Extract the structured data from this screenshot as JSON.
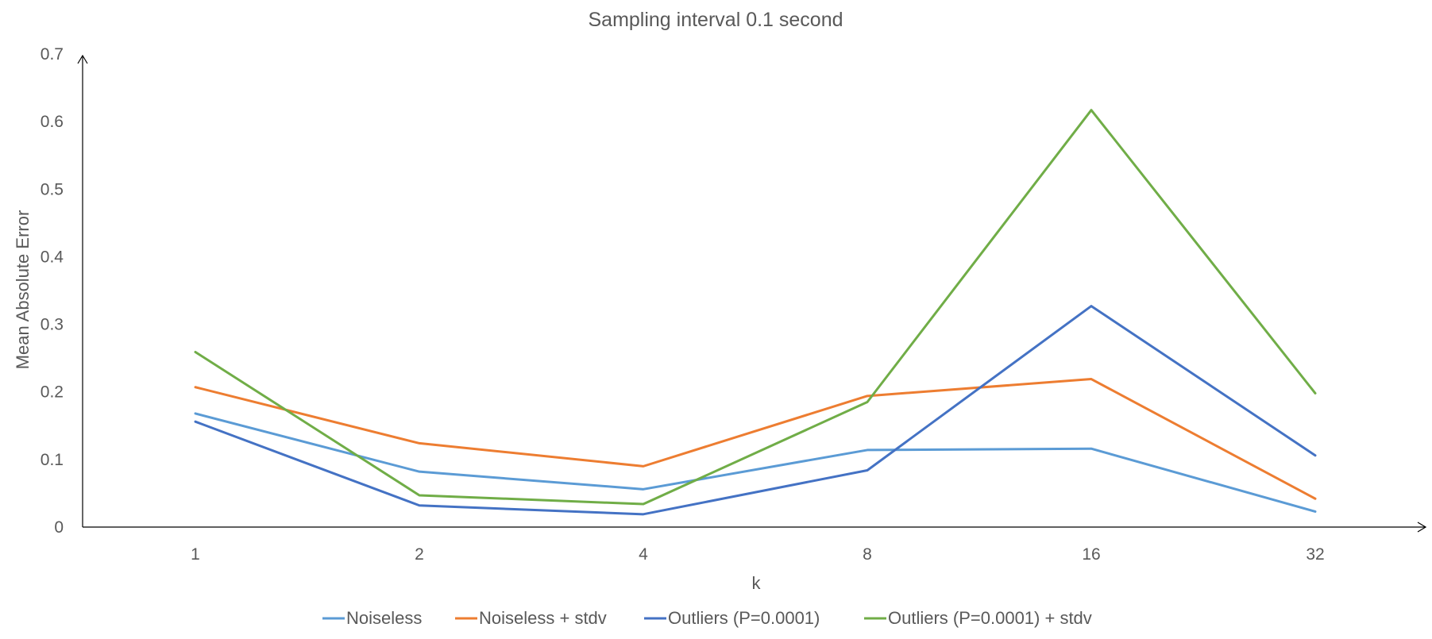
{
  "chart_data": {
    "type": "line",
    "title": "Sampling interval 0.1 second",
    "xlabel": "k",
    "ylabel": "Mean Absolute Error",
    "categories": [
      "1",
      "2",
      "4",
      "8",
      "16",
      "32"
    ],
    "ylim": [
      0,
      0.7
    ],
    "yticks": [
      "0",
      "0.1",
      "0.2",
      "0.3",
      "0.4",
      "0.5",
      "0.6",
      "0.7"
    ],
    "grid": false,
    "legend_position": "bottom",
    "series": [
      {
        "name": "Noiseless",
        "color": "#5B9BD5",
        "values": [
          0.168,
          0.082,
          0.056,
          0.114,
          0.116,
          0.023
        ]
      },
      {
        "name": "Noiseless + stdv",
        "color": "#ED7D31",
        "values": [
          0.207,
          0.124,
          0.09,
          0.194,
          0.219,
          0.042
        ]
      },
      {
        "name": "Outliers (P=0.0001)",
        "color": "#4472C4",
        "values": [
          0.156,
          0.032,
          0.019,
          0.084,
          0.327,
          0.106
        ]
      },
      {
        "name": "Outliers (P=0.0001) + stdv",
        "color": "#70AD47",
        "values": [
          0.259,
          0.047,
          0.034,
          0.185,
          0.617,
          0.198
        ]
      }
    ]
  }
}
